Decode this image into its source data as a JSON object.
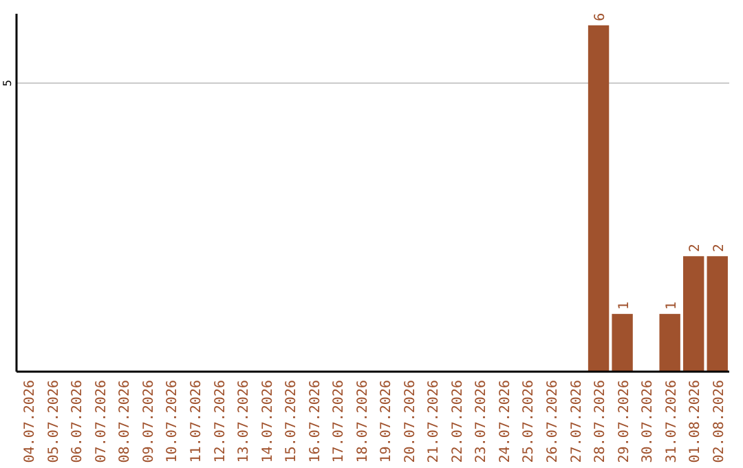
{
  "chart_data": {
    "type": "bar",
    "categories": [
      "04.07.2026",
      "05.07.2026",
      "06.07.2026",
      "07.07.2026",
      "08.07.2026",
      "09.07.2026",
      "10.07.2026",
      "11.07.2026",
      "12.07.2026",
      "13.07.2026",
      "14.07.2026",
      "15.07.2026",
      "16.07.2026",
      "17.07.2026",
      "18.07.2026",
      "19.07.2026",
      "20.07.2026",
      "21.07.2026",
      "22.07.2026",
      "23.07.2026",
      "24.07.2026",
      "25.07.2026",
      "26.07.2026",
      "27.07.2026",
      "28.07.2026",
      "29.07.2026",
      "30.07.2026",
      "31.07.2026",
      "01.08.2026",
      "02.08.2026"
    ],
    "values": [
      null,
      null,
      null,
      null,
      null,
      null,
      null,
      null,
      null,
      null,
      null,
      null,
      null,
      null,
      null,
      null,
      null,
      null,
      null,
      null,
      null,
      null,
      null,
      null,
      6,
      1,
      null,
      1,
      2,
      2
    ],
    "value_labels": [
      null,
      null,
      null,
      null,
      null,
      null,
      null,
      null,
      null,
      null,
      null,
      null,
      null,
      null,
      null,
      null,
      null,
      null,
      null,
      null,
      null,
      null,
      null,
      null,
      "6",
      "1",
      null,
      "1",
      "2",
      "2"
    ],
    "color": "#a0522d",
    "ylim": [
      0,
      6.2
    ],
    "yticks": [
      5
    ],
    "grid": "y"
  }
}
